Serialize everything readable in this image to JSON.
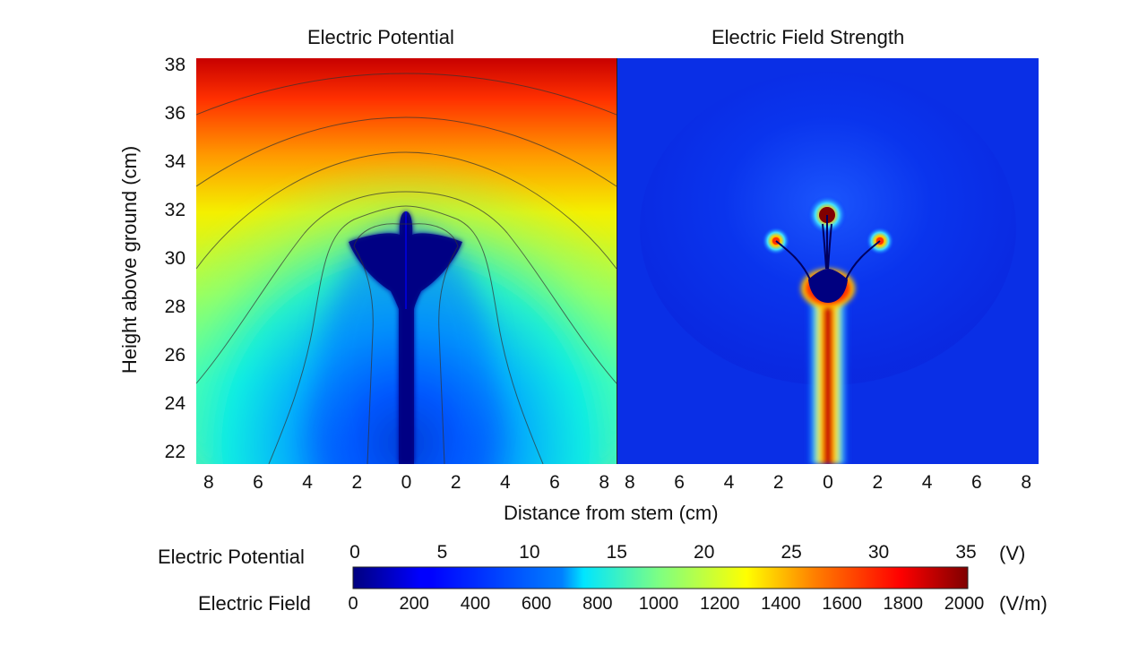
{
  "chart_data": [
    {
      "type": "heatmap",
      "title": "Electric Potential",
      "xlabel": "Distance from stem (cm)",
      "ylabel": "Height above ground (cm)",
      "x_ticks": [
        "8",
        "6",
        "4",
        "2",
        "0",
        "2",
        "4",
        "6",
        "8"
      ],
      "y_ticks": [
        "22",
        "24",
        "26",
        "28",
        "30",
        "32",
        "34",
        "36",
        "38"
      ],
      "x_range": [
        -8.5,
        8.5
      ],
      "y_range": [
        21.5,
        38.3
      ],
      "has_contours": true,
      "units": "V",
      "value_range": [
        0,
        35
      ]
    },
    {
      "type": "heatmap",
      "title": "Electric Field Strength",
      "x_ticks": [
        "8",
        "6",
        "4",
        "2",
        "0",
        "2",
        "4",
        "6",
        "8"
      ],
      "x_range": [
        -8.5,
        8.5
      ],
      "y_range": [
        21.5,
        38.3
      ],
      "units": "V/m",
      "value_range": [
        0,
        2000
      ]
    }
  ],
  "colorbar": {
    "colormap": "jet",
    "potential_label": "Electric Potential",
    "potential_ticks": [
      "0",
      "5",
      "10",
      "15",
      "20",
      "25",
      "30",
      "35"
    ],
    "potential_unit": "(V)",
    "field_label": "Electric Field",
    "field_ticks": [
      "0",
      "200",
      "400",
      "600",
      "800",
      "1000",
      "1200",
      "1400",
      "1600",
      "1800",
      "2000"
    ],
    "field_unit": "(V/m)"
  }
}
